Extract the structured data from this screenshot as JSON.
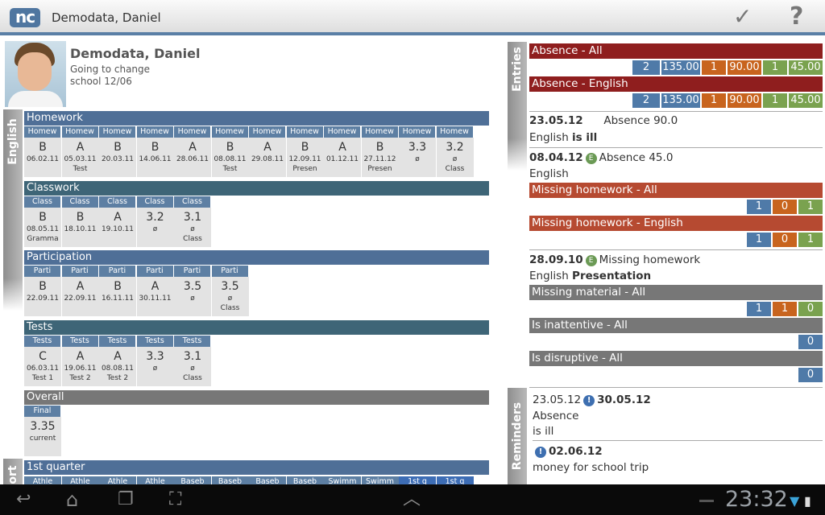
{
  "topbar": {
    "logo": "nc",
    "title": "Demodata, Daniel",
    "check_icon": "check-icon",
    "help_label": "?"
  },
  "student": {
    "name": "Demodata, Daniel",
    "note1": "Going to change",
    "note2": "school 12/06"
  },
  "subject_tab": "English",
  "sections": [
    {
      "title": "Homework",
      "header": "Homew",
      "cells": [
        {
          "grade": "B",
          "date": "06.02.11",
          "comment": ""
        },
        {
          "grade": "A",
          "date": "05.03.11",
          "comment": "Test"
        },
        {
          "grade": "B",
          "date": "20.03.11",
          "comment": ""
        },
        {
          "grade": "B",
          "date": "14.06.11",
          "comment": ""
        },
        {
          "grade": "A",
          "date": "28.06.11",
          "comment": ""
        },
        {
          "grade": "B",
          "date": "08.08.11",
          "comment": "Test"
        },
        {
          "grade": "A",
          "date": "29.08.11",
          "comment": ""
        },
        {
          "grade": "B",
          "date": "12.09.11",
          "comment": "Presen"
        },
        {
          "grade": "A",
          "date": "01.12.11",
          "comment": ""
        },
        {
          "grade": "B",
          "date": "27.11.12",
          "comment": "Presen"
        },
        {
          "grade": "3.3",
          "date": "ø",
          "comment": ""
        },
        {
          "grade": "3.2",
          "date": "ø",
          "comment": "Class"
        }
      ]
    },
    {
      "title": "Classwork",
      "header": "Class",
      "cells": [
        {
          "grade": "B",
          "date": "08.05.11",
          "comment": "Gramma"
        },
        {
          "grade": "B",
          "date": "18.10.11",
          "comment": ""
        },
        {
          "grade": "A",
          "date": "19.10.11",
          "comment": ""
        },
        {
          "grade": "3.2",
          "date": "ø",
          "comment": ""
        },
        {
          "grade": "3.1",
          "date": "ø",
          "comment": "Class"
        }
      ]
    },
    {
      "title": "Participation",
      "header": "Parti",
      "cells": [
        {
          "grade": "B",
          "date": "22.09.11",
          "comment": ""
        },
        {
          "grade": "A",
          "date": "22.09.11",
          "comment": ""
        },
        {
          "grade": "B",
          "date": "16.11.11",
          "comment": ""
        },
        {
          "grade": "A",
          "date": "30.11.11",
          "comment": ""
        },
        {
          "grade": "3.5",
          "date": "ø",
          "comment": ""
        },
        {
          "grade": "3.5",
          "date": "ø",
          "comment": "Class"
        }
      ]
    },
    {
      "title": "Tests",
      "header": "Tests",
      "cells": [
        {
          "grade": "C",
          "date": "06.03.11",
          "comment": "Test 1"
        },
        {
          "grade": "A",
          "date": "19.06.11",
          "comment": "Test 2"
        },
        {
          "grade": "A",
          "date": "08.08.11",
          "comment": "Test 2"
        },
        {
          "grade": "3.3",
          "date": "ø",
          "comment": ""
        },
        {
          "grade": "3.1",
          "date": "ø",
          "comment": "Class"
        }
      ]
    }
  ],
  "overall": {
    "title": "Overall",
    "header": "Final",
    "value": "3.35",
    "label": "current"
  },
  "sport": {
    "tab": "ort",
    "title": "1st quarter",
    "headers": [
      "Athle",
      "Athle",
      "Athle",
      "Athle",
      "Baseb",
      "Baseb",
      "Baseb",
      "Baseb",
      "Swimm",
      "Swimm",
      "1st q",
      "1st q"
    ]
  },
  "entries_tab": "Entries",
  "reminders_tab": "Reminders",
  "entries": {
    "absence_all": {
      "title": "Absence - All",
      "nums": [
        "2",
        "135.00",
        "1",
        "90.00",
        "1",
        "45.00"
      ]
    },
    "absence_en": {
      "title": "Absence - English",
      "nums": [
        "2",
        "135.00",
        "1",
        "90.00",
        "1",
        "45.00"
      ]
    },
    "e1": {
      "date": "23.05.12",
      "text": "Absence 90.0",
      "line2a": "English",
      "line2b": "is ill"
    },
    "e2": {
      "date": "08.04.12",
      "badge": "E",
      "text": "Absence 45.0",
      "line2a": "English"
    },
    "mh_all": {
      "title": "Missing homework - All",
      "nums": [
        "1",
        "0",
        "1"
      ]
    },
    "mh_en": {
      "title": "Missing homework - English",
      "nums": [
        "1",
        "0",
        "1"
      ]
    },
    "e3": {
      "date": "28.09.10",
      "badge": "E",
      "text": "Missing homework",
      "line2a": "English",
      "line2b": "Presentation"
    },
    "mm_all": {
      "title": "Missing material - All",
      "nums": [
        "1",
        "1",
        "0"
      ]
    },
    "ia_all": {
      "title": "Is inattentive - All",
      "nums": [
        "0"
      ]
    },
    "id_all": {
      "title": "Is disruptive - All",
      "nums": [
        "0"
      ]
    }
  },
  "reminders": {
    "r1": {
      "from": "23.05.12",
      "badge": "!",
      "to": "30.05.12",
      "line2": "Absence",
      "line3": "is ill"
    },
    "r2": {
      "badge": "!",
      "date": "02.06.12",
      "line2": "money for school trip"
    }
  },
  "navbar": {
    "clock": "23:32",
    "back_icon": "back-icon",
    "home_icon": "home-icon",
    "recent_icon": "recent-apps-icon",
    "screenshot_icon": "screenshot-icon",
    "up_icon": "chevron-up-icon"
  },
  "colors": {
    "accent": "#4f6f97",
    "absence": "#8f1e1e",
    "missing": "#b64a31",
    "count_blue": "#4f7aa8",
    "count_orange": "#c8641e",
    "count_green": "#7aa24f"
  }
}
